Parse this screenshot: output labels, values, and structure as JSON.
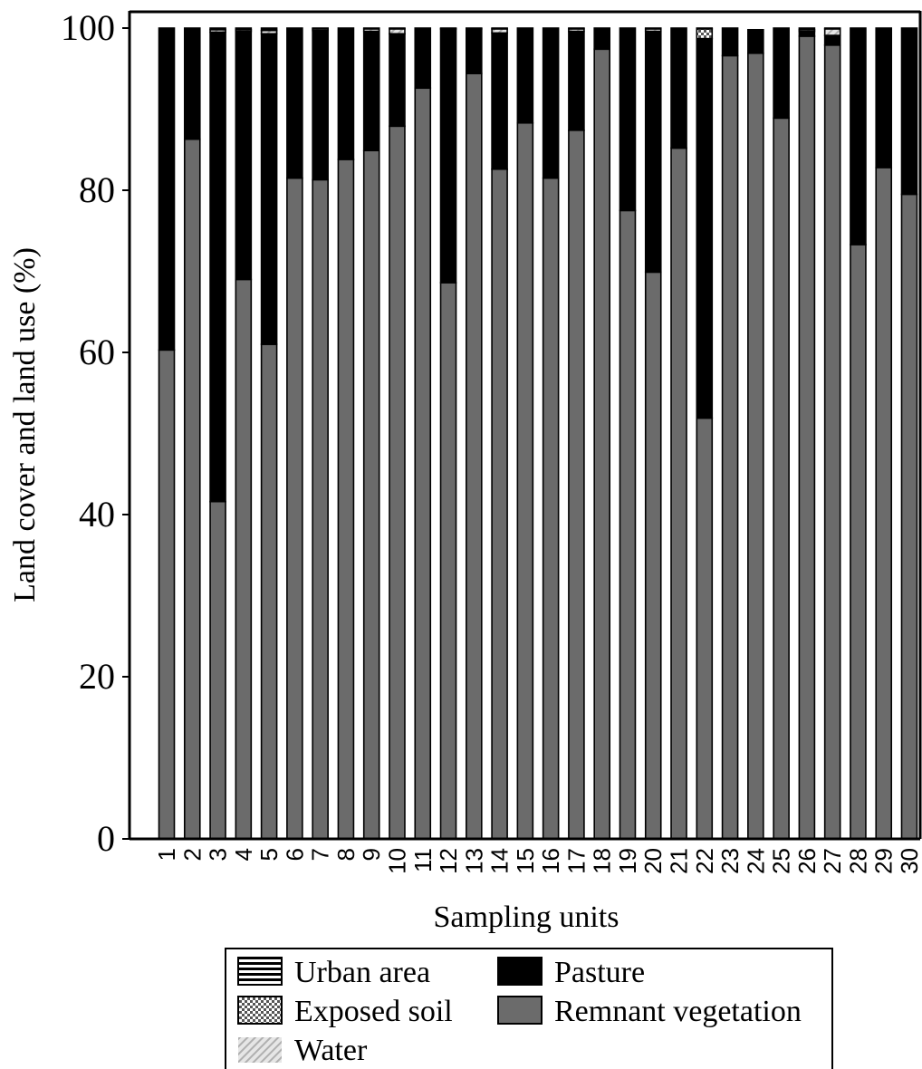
{
  "chart_data": {
    "type": "bar",
    "stacked": true,
    "xlabel": "Sampling units",
    "ylabel": "Land cover and land use (%)",
    "ylim": [
      0,
      100
    ],
    "yticks": [
      "0",
      "20",
      "40",
      "60",
      "80",
      "100"
    ],
    "categories": [
      "1",
      "2",
      "3",
      "4",
      "5",
      "6",
      "7",
      "8",
      "9",
      "10",
      "11",
      "12",
      "13",
      "14",
      "15",
      "16",
      "17",
      "18",
      "19",
      "20",
      "21",
      "22",
      "23",
      "24",
      "25",
      "26",
      "27",
      "28",
      "29",
      "30"
    ],
    "series": [
      {
        "name": "Remnant vegetation",
        "color": "#6b6b6b",
        "values": [
          60.3,
          86.3,
          41.6,
          69.0,
          61.0,
          81.5,
          81.3,
          83.8,
          84.9,
          87.9,
          92.6,
          68.6,
          94.4,
          82.6,
          88.3,
          81.5,
          87.4,
          97.4,
          77.5,
          69.9,
          85.2,
          51.9,
          96.6,
          96.9,
          88.9,
          99.0,
          97.9,
          73.3,
          82.8,
          79.5
        ]
      },
      {
        "name": "Pasture",
        "color": "#000000",
        "values": [
          39.7,
          13.7,
          57.9,
          30.6,
          38.3,
          18.5,
          18.4,
          16.2,
          14.7,
          11.4,
          7.4,
          31.3,
          5.5,
          16.8,
          11.7,
          18.5,
          12.2,
          2.6,
          22.5,
          29.7,
          14.8,
          46.8,
          3.4,
          2.9,
          11.1,
          0.6,
          1.2,
          26.7,
          17.2,
          20.5
        ]
      },
      {
        "name": "Exposed soil",
        "color": "#aaaaaa",
        "values": [
          0,
          0,
          0,
          0,
          0,
          0,
          0,
          0,
          0,
          0,
          0,
          0,
          0,
          0,
          0,
          0,
          0,
          0,
          0,
          0,
          0,
          1.2,
          0,
          0,
          0,
          0,
          0,
          0,
          0,
          0
        ]
      },
      {
        "name": "Water",
        "color": "#cccccc",
        "values": [
          0,
          0,
          0.3,
          0.2,
          0.4,
          0,
          0.2,
          0,
          0.3,
          0.6,
          0,
          0,
          0,
          0.5,
          0,
          0,
          0.3,
          0,
          0,
          0.3,
          0,
          0,
          0,
          0,
          0,
          0.2,
          0.8,
          0,
          0,
          0
        ]
      },
      {
        "name": "Urban area",
        "color": "#ffffff",
        "values": [
          0,
          0,
          0.2,
          0.2,
          0.3,
          0,
          0.1,
          0,
          0.1,
          0.1,
          0,
          0.1,
          0.1,
          0.1,
          0,
          0,
          0.1,
          0,
          0,
          0.1,
          0,
          0.1,
          0,
          0,
          0,
          0.2,
          0.1,
          0,
          0,
          0
        ]
      }
    ],
    "legend": {
      "position": "bottom",
      "entries": [
        {
          "label": "Urban area",
          "pattern": "hstripes"
        },
        {
          "label": "Pasture",
          "pattern": "solid-black"
        },
        {
          "label": "Exposed soil",
          "pattern": "checker"
        },
        {
          "label": "Remnant vegetation",
          "pattern": "solid-gray"
        },
        {
          "label": "Water",
          "pattern": "diagonal"
        }
      ]
    },
    "grid": false
  }
}
